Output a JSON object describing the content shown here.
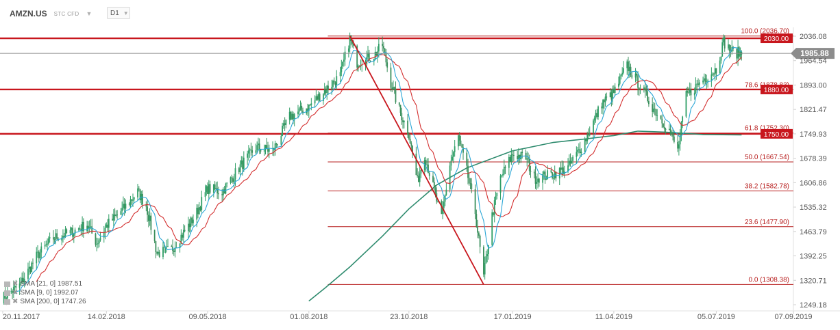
{
  "header": {
    "symbol": "AMZN.US",
    "subtype": "STC CFD",
    "timeframe": "D1"
  },
  "price_badge": {
    "value": "1985.88"
  },
  "indicators": [
    {
      "label": "SMA [21, 0] 1987.51",
      "color": "#d32f2f"
    },
    {
      "label": "SMA [9, 0] 1992.07",
      "color": "#2aa6d6"
    },
    {
      "label": "SMA [200, 0] 1747.26",
      "color": "#2e8b6e"
    }
  ],
  "chart_data": {
    "type": "candlestick",
    "instrument": "AMZN.US",
    "timeframe": "D1",
    "x_labels": [
      "20.11.2017",
      "14.02.2018",
      "09.05.2018",
      "01.08.2018",
      "23.10.2018",
      "17.01.2019",
      "11.04.2019",
      "05.07.2019",
      "07.09.2019"
    ],
    "x_range": [
      "20.11.2017",
      "07.09.2019"
    ],
    "y_ticks": [
      "2036.08",
      "1964.54",
      "1893.00",
      "1821.47",
      "1749.93",
      "1678.39",
      "1606.86",
      "1535.32",
      "1463.79",
      "1392.25",
      "1320.71",
      "1249.18"
    ],
    "ylim": [
      1249.18,
      2036.08
    ],
    "last_price": 1985.88,
    "horizontal_levels": [
      {
        "label": "2030.00",
        "price": 2030.0
      },
      {
        "label": "1880.00",
        "price": 1880.0
      },
      {
        "label": "1750.00",
        "price": 1750.0
      }
    ],
    "fibonacci": {
      "high": 2036.7,
      "low": 1308.38,
      "levels": [
        {
          "label": "100.0 (2036.70)",
          "price": 2036.7
        },
        {
          "label": "78.6 (1878.83)",
          "price": 1878.83
        },
        {
          "label": "61.8 (1752.30)",
          "price": 1752.3
        },
        {
          "label": "50.0 (1667.54)",
          "price": 1667.54
        },
        {
          "label": "38.2 (1582.78)",
          "price": 1582.78
        },
        {
          "label": "23.6 (1477.90)",
          "price": 1477.9
        },
        {
          "label": "0.0 (1308.38)",
          "price": 1308.38
        }
      ]
    },
    "price_path": [
      [
        "20.11.2017",
        1270
      ],
      [
        "04.12.2017",
        1305
      ],
      [
        "18.12.2017",
        1390
      ],
      [
        "01.01.2018",
        1445
      ],
      [
        "15.01.2018",
        1460
      ],
      [
        "29.01.2018",
        1485
      ],
      [
        "06.02.2018",
        1430
      ],
      [
        "14.02.2018",
        1480
      ],
      [
        "28.02.2018",
        1530
      ],
      [
        "12.03.2018",
        1580
      ],
      [
        "19.03.2018",
        1540
      ],
      [
        "28.03.2018",
        1400
      ],
      [
        "09.04.2018",
        1410
      ],
      [
        "23.04.2018",
        1480
      ],
      [
        "30.04.2018",
        1520
      ],
      [
        "09.05.2018",
        1590
      ],
      [
        "21.05.2018",
        1580
      ],
      [
        "04.06.2018",
        1650
      ],
      [
        "18.06.2018",
        1710
      ],
      [
        "02.07.2018",
        1700
      ],
      [
        "16.07.2018",
        1800
      ],
      [
        "01.08.2018",
        1830
      ],
      [
        "15.08.2018",
        1880
      ],
      [
        "27.08.2018",
        1920
      ],
      [
        "04.09.2018",
        2030
      ],
      [
        "10.09.2018",
        1960
      ],
      [
        "24.09.2018",
        1980
      ],
      [
        "01.10.2018",
        2010
      ],
      [
        "08.10.2018",
        1900
      ],
      [
        "15.10.2018",
        1820
      ],
      [
        "23.10.2018",
        1750
      ],
      [
        "30.10.2018",
        1610
      ],
      [
        "05.11.2018",
        1690
      ],
      [
        "19.11.2018",
        1500
      ],
      [
        "26.11.2018",
        1660
      ],
      [
        "03.12.2018",
        1740
      ],
      [
        "10.12.2018",
        1640
      ],
      [
        "17.12.2018",
        1520
      ],
      [
        "24.12.2018",
        1330
      ],
      [
        "31.12.2018",
        1510
      ],
      [
        "07.01.2019",
        1620
      ],
      [
        "17.01.2019",
        1690
      ],
      [
        "28.01.2019",
        1680
      ],
      [
        "04.02.2019",
        1620
      ],
      [
        "18.02.2019",
        1630
      ],
      [
        "04.03.2019",
        1650
      ],
      [
        "18.03.2019",
        1730
      ],
      [
        "01.04.2019",
        1840
      ],
      [
        "11.04.2019",
        1870
      ],
      [
        "22.04.2019",
        1950
      ],
      [
        "01.05.2019",
        1900
      ],
      [
        "13.05.2019",
        1830
      ],
      [
        "27.05.2019",
        1760
      ],
      [
        "03.06.2019",
        1700
      ],
      [
        "10.06.2019",
        1860
      ],
      [
        "24.06.2019",
        1910
      ],
      [
        "05.07.2019",
        1940
      ],
      [
        "11.07.2019",
        2020
      ],
      [
        "18.07.2019",
        1990
      ],
      [
        "26.07.2019",
        1985
      ]
    ],
    "sma_200": [
      [
        "01.08.2018",
        1260
      ],
      [
        "15.08.2018",
        1300
      ],
      [
        "04.09.2018",
        1360
      ],
      [
        "01.10.2018",
        1450
      ],
      [
        "23.10.2018",
        1530
      ],
      [
        "15.11.2018",
        1600
      ],
      [
        "10.12.2018",
        1650
      ],
      [
        "17.01.2019",
        1700
      ],
      [
        "20.02.2019",
        1725
      ],
      [
        "18.03.2019",
        1735
      ],
      [
        "11.04.2019",
        1745
      ],
      [
        "01.05.2019",
        1758
      ],
      [
        "24.05.2019",
        1755
      ],
      [
        "24.06.2019",
        1748
      ],
      [
        "26.07.2019",
        1747
      ]
    ]
  }
}
